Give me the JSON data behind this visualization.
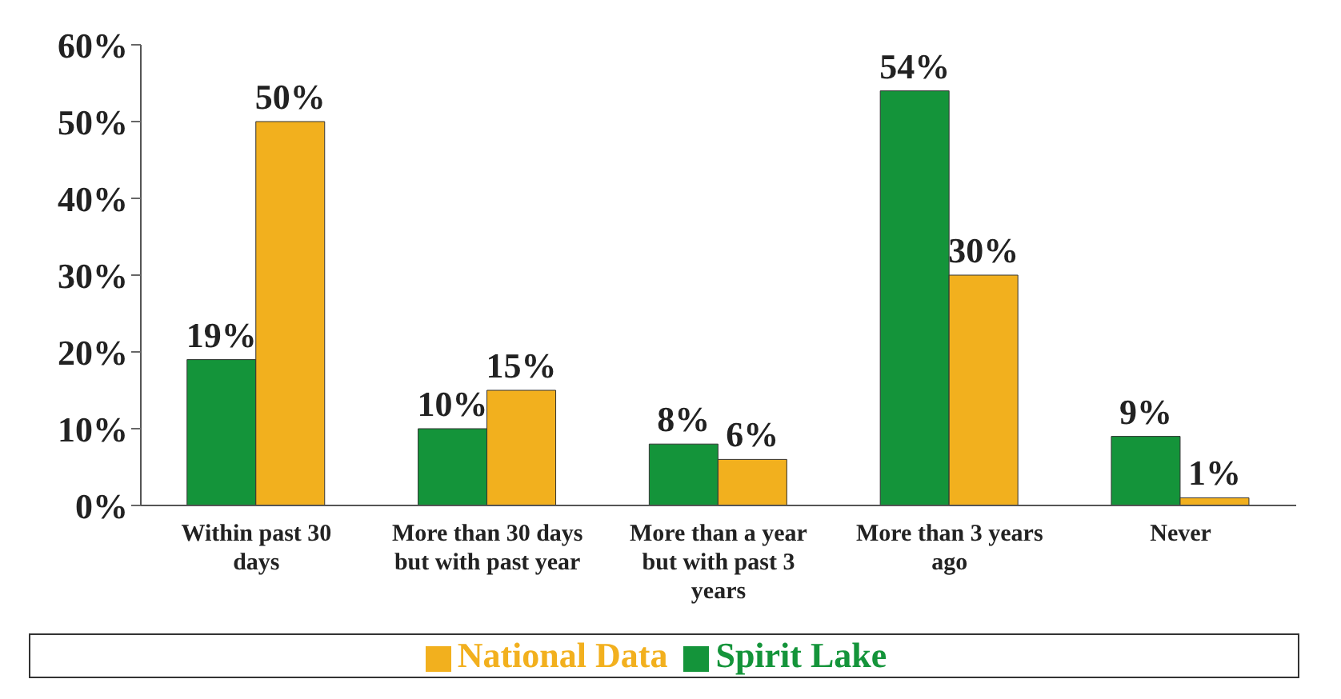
{
  "chart_data": {
    "type": "bar",
    "categories": [
      "Within past 30 days",
      "More than 30 days but with past year",
      "More than a year but with past 3 years",
      "More than 3 years ago",
      "Never"
    ],
    "series": [
      {
        "name": "Spirit Lake",
        "color": "#14943a",
        "values": [
          19,
          10,
          8,
          54,
          9
        ],
        "value_labels": [
          "19%",
          "10%",
          "8%",
          "54%",
          "9%"
        ]
      },
      {
        "name": "National Data",
        "color": "#f2b01e",
        "values": [
          50,
          15,
          6,
          30,
          1
        ],
        "value_labels": [
          "50%",
          "15%",
          "6%",
          "30%",
          "1%"
        ]
      }
    ],
    "ylim": [
      0,
      60
    ],
    "yticks": [
      {
        "value": 0,
        "label": "0%"
      },
      {
        "value": 10,
        "label": "10%"
      },
      {
        "value": 20,
        "label": "20%"
      },
      {
        "value": 30,
        "label": "30%"
      },
      {
        "value": 40,
        "label": "40%"
      },
      {
        "value": 50,
        "label": "50%"
      },
      {
        "value": 60,
        "label": "60%"
      }
    ],
    "grid": false,
    "legend": "bottom"
  }
}
